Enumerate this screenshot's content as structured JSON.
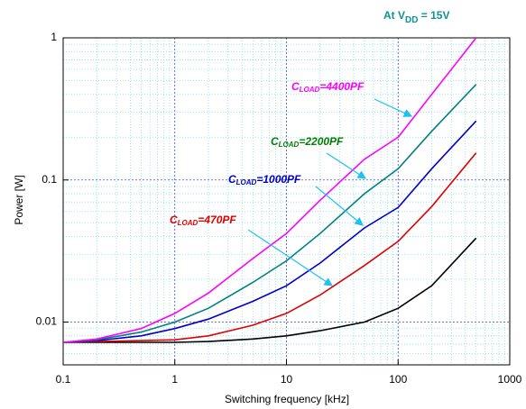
{
  "chart_data": {
    "type": "line",
    "title": [
      "At V",
      "DD",
      " = 15V"
    ],
    "x_label": "Switching frequency [kHz]",
    "y_label": "Power [W]",
    "log_x": true,
    "log_y": true,
    "grid": true,
    "xlim": [
      0.1,
      1000
    ],
    "xticks": [
      0.1,
      1,
      10,
      100,
      1000
    ],
    "ylim": [
      0.005,
      1
    ],
    "yticks": [
      0.01,
      0.1,
      1
    ],
    "x": [
      0.1,
      0.2,
      0.5,
      1,
      2,
      5,
      10,
      20,
      50,
      100,
      200,
      500
    ],
    "series": [
      {
        "color": "#000000",
        "values": [
          0.0072,
          0.0072,
          0.0072,
          0.0072,
          0.0073,
          0.0076,
          0.008,
          0.0087,
          0.01,
          0.0125,
          0.018,
          0.039
        ]
      },
      {
        "color": "#e00000",
        "label": [
          "C",
          "LOAD",
          "=470PF"
        ],
        "label_color": "#e00000",
        "values": [
          0.0072,
          0.0073,
          0.0074,
          0.0075,
          0.008,
          0.0095,
          0.0115,
          0.0155,
          0.025,
          0.037,
          0.065,
          0.155
        ]
      },
      {
        "color": "#0000cc",
        "label": [
          "C",
          "LOAD",
          "=1000PF"
        ],
        "label_color": "#0000cc",
        "values": [
          0.0072,
          0.0074,
          0.008,
          0.009,
          0.0105,
          0.014,
          0.018,
          0.026,
          0.046,
          0.064,
          0.12,
          0.26
        ]
      },
      {
        "color": "#008080",
        "label": [
          "C",
          "LOAD",
          "=2200PF"
        ],
        "label_color": "#008000",
        "values": [
          0.0072,
          0.0075,
          0.0085,
          0.01,
          0.0125,
          0.019,
          0.027,
          0.042,
          0.08,
          0.12,
          0.22,
          0.47
        ]
      },
      {
        "color": "#ff00ff",
        "label": [
          "C",
          "LOAD",
          "=4400PF"
        ],
        "label_color": "#ff00ff",
        "values": [
          0.0072,
          0.0076,
          0.009,
          0.0115,
          0.016,
          0.028,
          0.042,
          0.072,
          0.14,
          0.2,
          0.4,
          1.0
        ]
      }
    ]
  }
}
